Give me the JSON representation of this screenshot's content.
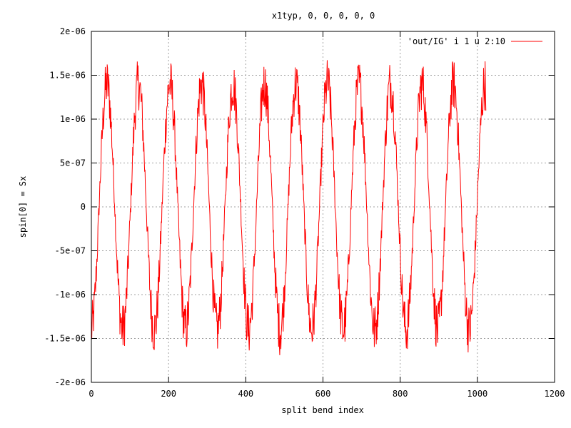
{
  "chart_data": {
    "type": "line",
    "title": "x1typ, 0, 0, 0, 0, 0",
    "xlabel": "split bend index",
    "ylabel": "spin[0] = Sx",
    "xlim": [
      0,
      1200
    ],
    "ylim": [
      -2e-06,
      2e-06
    ],
    "x_ticks": [
      0,
      200,
      400,
      600,
      800,
      1000,
      1200
    ],
    "x_tick_labels": [
      "0",
      "200",
      "400",
      "600",
      "800",
      "1000",
      "1200"
    ],
    "y_ticks": [
      -2e-06,
      -1.5e-06,
      -1e-06,
      -5e-07,
      0,
      5e-07,
      1e-06,
      1.5e-06,
      2e-06
    ],
    "y_tick_labels": [
      "-2e-06",
      "-1.5e-06",
      "-1e-06",
      "-5e-07",
      "0",
      "5e-07",
      "1e-06",
      "1.5e-06",
      "2e-06"
    ],
    "grid": true,
    "legend_position": "top-right",
    "series": [
      {
        "name": "'out/IG' i 1 u 2:10",
        "color": "#ff0000",
        "approx": {
          "x_start": 0,
          "x_end": 1022,
          "period": 81.6,
          "amplitude": 1.4e-06,
          "noise_amplitude": 3e-07,
          "crossing_up_x": 20
        }
      }
    ]
  }
}
